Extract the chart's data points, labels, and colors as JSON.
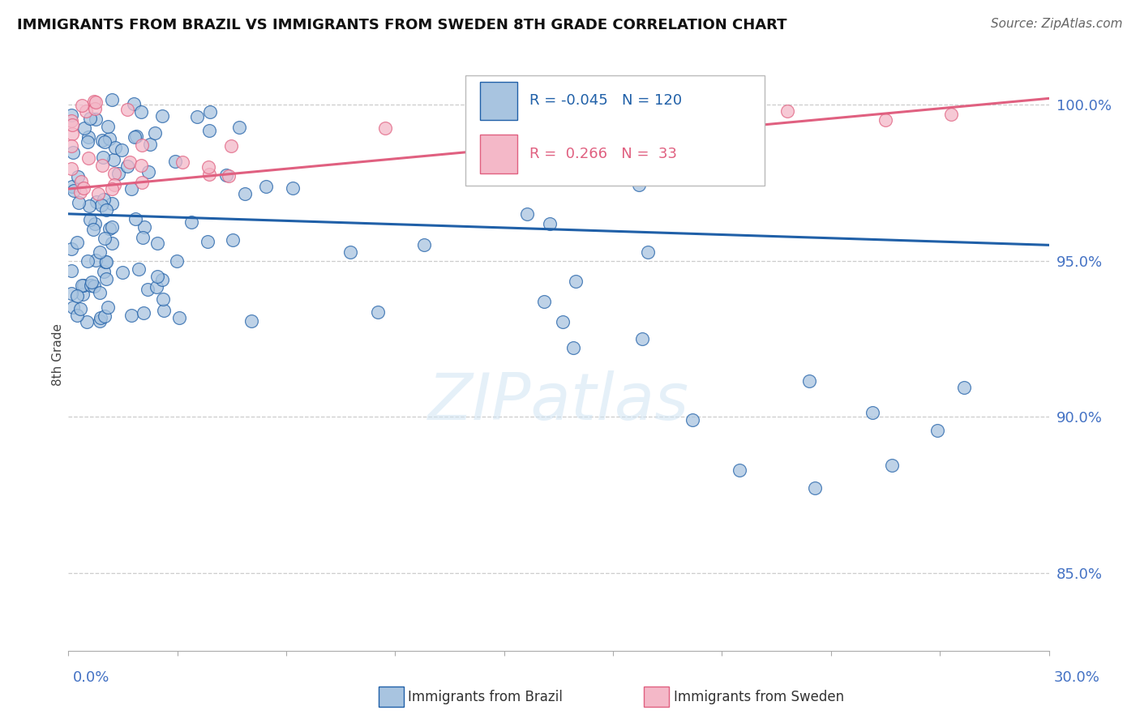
{
  "title": "IMMIGRANTS FROM BRAZIL VS IMMIGRANTS FROM SWEDEN 8TH GRADE CORRELATION CHART",
  "source": "Source: ZipAtlas.com",
  "ylabel": "8th Grade",
  "ylabel_ticks": [
    "85.0%",
    "90.0%",
    "95.0%",
    "100.0%"
  ],
  "ylabel_values": [
    0.85,
    0.9,
    0.95,
    1.0
  ],
  "xlim": [
    0.0,
    0.3
  ],
  "ylim": [
    0.825,
    1.015
  ],
  "r_brazil": -0.045,
  "n_brazil": 120,
  "r_sweden": 0.266,
  "n_sweden": 33,
  "color_brazil": "#a8c4e0",
  "color_sweden": "#f4b8c8",
  "line_color_brazil": "#2060a8",
  "line_color_sweden": "#e06080",
  "background_color": "#ffffff",
  "trendline_brazil": [
    0.965,
    0.955
  ],
  "trendline_sweden": [
    0.973,
    1.002
  ]
}
